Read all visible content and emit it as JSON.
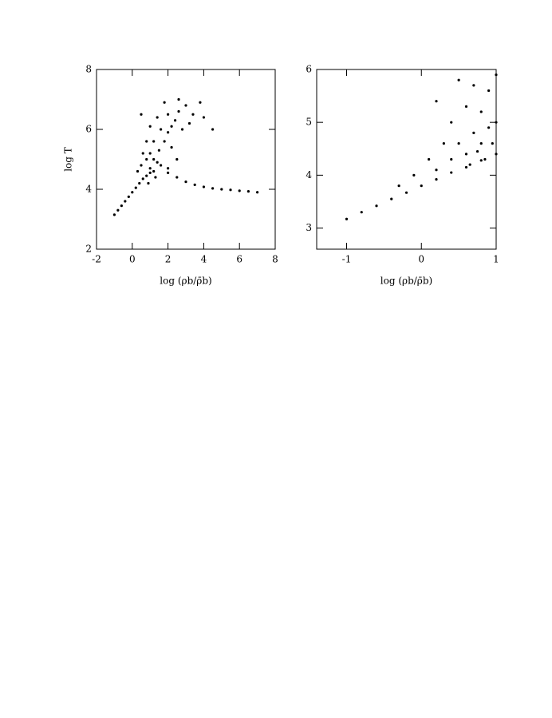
{
  "chart_data": [
    {
      "type": "scatter",
      "xlabel": "log (ρb/ρ̄b)",
      "ylabel": "log T",
      "xlim": [
        -2,
        8
      ],
      "ylim": [
        2,
        8
      ],
      "xticks": [
        -2,
        0,
        2,
        4,
        6,
        8
      ],
      "yticks": [
        2,
        4,
        6,
        8
      ],
      "series": [
        {
          "color": "#000000",
          "x": [
            -1,
            -0.8,
            -0.6,
            -0.4,
            -0.2,
            0,
            0.2,
            0.4,
            0.6,
            0.8,
            1.0,
            1.2,
            0.5,
            0.8,
            1.0,
            1.2,
            1.4,
            1.0,
            1.5,
            1.8,
            2.0,
            2.2,
            1.6,
            2.4,
            2.0,
            2.6,
            3.0,
            1.4,
            2.8,
            3.4,
            1.8,
            2.2,
            1.2,
            0.6,
            0.3,
            1.6,
            2.0,
            2.5,
            3.2,
            4.0,
            4.5,
            3.8,
            2.6,
            0.5,
            1.0,
            0.8,
            1.3,
            0.9,
            2,
            2.5,
            3,
            3.5,
            4,
            4.5,
            5,
            5.5,
            6,
            6.5,
            7
          ],
          "values": [
            3.15,
            3.3,
            3.45,
            3.6,
            3.75,
            3.9,
            4.05,
            4.2,
            4.35,
            4.45,
            4.55,
            4.6,
            4.8,
            5.0,
            5.2,
            5.0,
            4.9,
            4.7,
            5.3,
            5.6,
            5.9,
            6.1,
            6.0,
            6.3,
            6.5,
            6.6,
            6.8,
            6.4,
            6.0,
            6.5,
            6.9,
            5.4,
            5.6,
            5.2,
            4.6,
            4.8,
            4.7,
            5.0,
            6.2,
            6.4,
            6.0,
            6.9,
            7.0,
            6.5,
            6.1,
            5.6,
            4.4,
            4.2,
            4.55,
            4.4,
            4.25,
            4.15,
            4.08,
            4.03,
            4.0,
            3.98,
            3.95,
            3.93,
            3.9
          ]
        }
      ]
    },
    {
      "type": "scatter",
      "xlabel": "log (ρb/ρ̄b)",
      "xlim": [
        -1.4,
        1
      ],
      "ylim": [
        2.6,
        6
      ],
      "xticks": [
        -1,
        0,
        1
      ],
      "yticks": [
        3,
        4,
        5,
        6
      ],
      "series": [
        {
          "color": "#000000",
          "x": [
            -1,
            -0.8,
            -0.6,
            -0.4,
            -0.2,
            0,
            0.2,
            0.4,
            0.6,
            0.8,
            1,
            0.2,
            0.4,
            0.5,
            0.6,
            0.7,
            0.8,
            0.8,
            0.9,
            0.9,
            1.0,
            1.0,
            0.6,
            0.4,
            0.3,
            0.7,
            0.95,
            0.85,
            0.5,
            0.2,
            0.1,
            -0.1,
            -0.3,
            0.65,
            0.75
          ],
          "values": [
            3.17,
            3.3,
            3.42,
            3.55,
            3.67,
            3.8,
            3.92,
            4.05,
            4.15,
            4.28,
            4.4,
            4.1,
            4.3,
            4.6,
            4.4,
            4.8,
            4.6,
            5.2,
            4.9,
            5.6,
            5.0,
            5.9,
            5.3,
            5.0,
            4.6,
            5.7,
            4.6,
            4.3,
            5.8,
            5.4,
            4.3,
            4.0,
            3.8,
            4.2,
            4.45
          ]
        }
      ]
    }
  ]
}
